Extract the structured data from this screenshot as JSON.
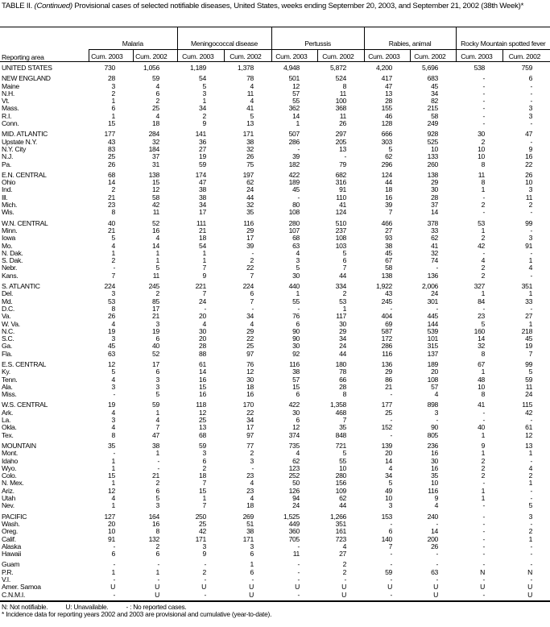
{
  "title": {
    "prefix": "TABLE II. ",
    "continued": "(Continued)",
    "text": " Provisional cases of selected notifiable diseases, United States, weeks ending September 20, 2003, and September 21, 2002 (38th Week)*"
  },
  "header": {
    "area_label": "Reporting area",
    "groups": [
      "Malaria",
      "Meningococcal disease",
      "Pertussis",
      "Rabies, animal",
      "Rocky Mountain spotted fever"
    ],
    "sub": [
      "Cum. 2003",
      "Cum. 2002"
    ]
  },
  "groups": [
    [
      [
        "UNITED STATES",
        "730",
        "1,056",
        "1,189",
        "1,378",
        "4,948",
        "5,872",
        "4,200",
        "5,696",
        "538",
        "759"
      ]
    ],
    [
      [
        "NEW ENGLAND",
        "28",
        "59",
        "54",
        "78",
        "501",
        "524",
        "417",
        "683",
        "-",
        "6"
      ],
      [
        "Maine",
        "3",
        "4",
        "5",
        "4",
        "12",
        "8",
        "47",
        "45",
        "-",
        "-"
      ],
      [
        "N.H.",
        "2",
        "6",
        "3",
        "11",
        "57",
        "11",
        "13",
        "34",
        "-",
        "-"
      ],
      [
        "Vt.",
        "1",
        "2",
        "1",
        "4",
        "55",
        "100",
        "28",
        "82",
        "-",
        "-"
      ],
      [
        "Mass.",
        "6",
        "25",
        "34",
        "41",
        "362",
        "368",
        "155",
        "215",
        "-",
        "3"
      ],
      [
        "R.I.",
        "1",
        "4",
        "2",
        "5",
        "14",
        "11",
        "46",
        "58",
        "-",
        "3"
      ],
      [
        "Conn.",
        "15",
        "18",
        "9",
        "13",
        "1",
        "26",
        "128",
        "249",
        "-",
        "-"
      ]
    ],
    [
      [
        "MID. ATLANTIC",
        "177",
        "284",
        "141",
        "171",
        "507",
        "297",
        "666",
        "928",
        "30",
        "47"
      ],
      [
        "Upstate N.Y.",
        "43",
        "32",
        "36",
        "38",
        "286",
        "205",
        "303",
        "525",
        "2",
        "-"
      ],
      [
        "N.Y. City",
        "83",
        "184",
        "27",
        "32",
        "-",
        "13",
        "5",
        "10",
        "10",
        "9"
      ],
      [
        "N.J.",
        "25",
        "37",
        "19",
        "26",
        "39",
        "-",
        "62",
        "133",
        "10",
        "16"
      ],
      [
        "Pa.",
        "26",
        "31",
        "59",
        "75",
        "182",
        "79",
        "296",
        "260",
        "8",
        "22"
      ]
    ],
    [
      [
        "E.N. CENTRAL",
        "68",
        "138",
        "174",
        "197",
        "422",
        "682",
        "124",
        "138",
        "11",
        "26"
      ],
      [
        "Ohio",
        "14",
        "15",
        "47",
        "62",
        "189",
        "316",
        "44",
        "29",
        "8",
        "10"
      ],
      [
        "Ind.",
        "2",
        "12",
        "38",
        "24",
        "45",
        "91",
        "18",
        "30",
        "1",
        "3"
      ],
      [
        "Ill.",
        "21",
        "58",
        "38",
        "44",
        "-",
        "110",
        "16",
        "28",
        "-",
        "11"
      ],
      [
        "Mich.",
        "23",
        "42",
        "34",
        "32",
        "80",
        "41",
        "39",
        "37",
        "2",
        "2"
      ],
      [
        "Wis.",
        "8",
        "11",
        "17",
        "35",
        "108",
        "124",
        "7",
        "14",
        "-",
        "-"
      ]
    ],
    [
      [
        "W.N. CENTRAL",
        "40",
        "52",
        "111",
        "116",
        "280",
        "510",
        "466",
        "378",
        "53",
        "99"
      ],
      [
        "Minn.",
        "21",
        "16",
        "21",
        "29",
        "107",
        "237",
        "27",
        "33",
        "1",
        "-"
      ],
      [
        "Iowa",
        "5",
        "4",
        "18",
        "17",
        "68",
        "108",
        "93",
        "62",
        "2",
        "3"
      ],
      [
        "Mo.",
        "4",
        "14",
        "54",
        "39",
        "63",
        "103",
        "38",
        "41",
        "42",
        "91"
      ],
      [
        "N. Dak.",
        "1",
        "1",
        "1",
        "-",
        "4",
        "5",
        "45",
        "32",
        "-",
        "-"
      ],
      [
        "S. Dak.",
        "2",
        "1",
        "1",
        "2",
        "3",
        "6",
        "67",
        "74",
        "4",
        "1"
      ],
      [
        "Nebr.",
        "-",
        "5",
        "7",
        "22",
        "5",
        "7",
        "58",
        "-",
        "2",
        "4"
      ],
      [
        "Kans.",
        "7",
        "11",
        "9",
        "7",
        "30",
        "44",
        "138",
        "136",
        "2",
        "-"
      ]
    ],
    [
      [
        "S. ATLANTIC",
        "224",
        "245",
        "221",
        "224",
        "440",
        "334",
        "1,922",
        "2,006",
        "327",
        "351"
      ],
      [
        "Del.",
        "3",
        "2",
        "7",
        "6",
        "1",
        "2",
        "43",
        "24",
        "1",
        "1"
      ],
      [
        "Md.",
        "53",
        "85",
        "24",
        "7",
        "55",
        "53",
        "245",
        "301",
        "84",
        "33"
      ],
      [
        "D.C.",
        "8",
        "17",
        "-",
        "-",
        "-",
        "1",
        "-",
        "-",
        "-",
        "-"
      ],
      [
        "Va.",
        "26",
        "21",
        "20",
        "34",
        "76",
        "117",
        "404",
        "445",
        "23",
        "27"
      ],
      [
        "W. Va.",
        "4",
        "3",
        "4",
        "4",
        "6",
        "30",
        "69",
        "144",
        "5",
        "1"
      ],
      [
        "N.C.",
        "19",
        "19",
        "30",
        "29",
        "90",
        "29",
        "587",
        "539",
        "160",
        "218"
      ],
      [
        "S.C.",
        "3",
        "6",
        "20",
        "22",
        "90",
        "34",
        "172",
        "101",
        "14",
        "45"
      ],
      [
        "Ga.",
        "45",
        "40",
        "28",
        "25",
        "30",
        "24",
        "286",
        "315",
        "32",
        "19"
      ],
      [
        "Fla.",
        "63",
        "52",
        "88",
        "97",
        "92",
        "44",
        "116",
        "137",
        "8",
        "7"
      ]
    ],
    [
      [
        "E.S. CENTRAL",
        "12",
        "17",
        "61",
        "76",
        "116",
        "180",
        "136",
        "189",
        "67",
        "99"
      ],
      [
        "Ky.",
        "5",
        "6",
        "14",
        "12",
        "38",
        "78",
        "29",
        "20",
        "1",
        "5"
      ],
      [
        "Tenn.",
        "4",
        "3",
        "16",
        "30",
        "57",
        "66",
        "86",
        "108",
        "48",
        "59"
      ],
      [
        "Ala.",
        "3",
        "3",
        "15",
        "18",
        "15",
        "28",
        "21",
        "57",
        "10",
        "11"
      ],
      [
        "Miss.",
        "-",
        "5",
        "16",
        "16",
        "6",
        "8",
        "-",
        "4",
        "8",
        "24"
      ]
    ],
    [
      [
        "W.S. CENTRAL",
        "19",
        "59",
        "118",
        "170",
        "422",
        "1,358",
        "177",
        "898",
        "41",
        "115"
      ],
      [
        "Ark.",
        "4",
        "1",
        "12",
        "22",
        "30",
        "468",
        "25",
        "3",
        "-",
        "42"
      ],
      [
        "La.",
        "3",
        "4",
        "25",
        "34",
        "6",
        "7",
        "-",
        "-",
        "-",
        "-"
      ],
      [
        "Okla.",
        "4",
        "7",
        "13",
        "17",
        "12",
        "35",
        "152",
        "90",
        "40",
        "61"
      ],
      [
        "Tex.",
        "8",
        "47",
        "68",
        "97",
        "374",
        "848",
        "-",
        "805",
        "1",
        "12"
      ]
    ],
    [
      [
        "MOUNTAIN",
        "35",
        "38",
        "59",
        "77",
        "735",
        "721",
        "139",
        "236",
        "9",
        "13"
      ],
      [
        "Mont.",
        "-",
        "1",
        "3",
        "2",
        "4",
        "5",
        "20",
        "16",
        "1",
        "1"
      ],
      [
        "Idaho",
        "1",
        "-",
        "6",
        "3",
        "62",
        "55",
        "14",
        "30",
        "2",
        "-"
      ],
      [
        "Wyo.",
        "1",
        "-",
        "2",
        "-",
        "123",
        "10",
        "4",
        "16",
        "2",
        "4"
      ],
      [
        "Colo.",
        "15",
        "21",
        "18",
        "23",
        "252",
        "280",
        "34",
        "35",
        "2",
        "2"
      ],
      [
        "N. Mex.",
        "1",
        "2",
        "7",
        "4",
        "50",
        "156",
        "5",
        "10",
        "-",
        "1"
      ],
      [
        "Ariz.",
        "12",
        "6",
        "15",
        "23",
        "126",
        "109",
        "49",
        "116",
        "1",
        "-"
      ],
      [
        "Utah",
        "4",
        "5",
        "1",
        "4",
        "94",
        "62",
        "10",
        "9",
        "1",
        "-"
      ],
      [
        "Nev.",
        "1",
        "3",
        "7",
        "18",
        "24",
        "44",
        "3",
        "4",
        "-",
        "5"
      ]
    ],
    [
      [
        "PACIFIC",
        "127",
        "164",
        "250",
        "269",
        "1,525",
        "1,266",
        "153",
        "240",
        "-",
        "3"
      ],
      [
        "Wash.",
        "20",
        "16",
        "25",
        "51",
        "449",
        "351",
        "-",
        "-",
        "-",
        "-"
      ],
      [
        "Oreg.",
        "10",
        "8",
        "42",
        "38",
        "360",
        "161",
        "6",
        "14",
        "-",
        "2"
      ],
      [
        "Calif.",
        "91",
        "132",
        "171",
        "171",
        "705",
        "723",
        "140",
        "200",
        "-",
        "1"
      ],
      [
        "Alaska",
        "-",
        "2",
        "3",
        "3",
        "-",
        "4",
        "7",
        "26",
        "-",
        "-"
      ],
      [
        "Hawaii",
        "6",
        "6",
        "9",
        "6",
        "11",
        "27",
        "-",
        "-",
        "-",
        "-"
      ]
    ],
    [
      [
        "Guam",
        "-",
        "-",
        "-",
        "1",
        "-",
        "2",
        "-",
        "-",
        "-",
        "-"
      ],
      [
        "P.R.",
        "1",
        "1",
        "2",
        "6",
        "-",
        "2",
        "59",
        "63",
        "N",
        "N"
      ],
      [
        "V.I.",
        "-",
        "-",
        "-",
        "-",
        "-",
        "-",
        "-",
        "-",
        "-",
        "-"
      ],
      [
        "Amer. Samoa",
        "U",
        "U",
        "U",
        "U",
        "U",
        "U",
        "U",
        "U",
        "U",
        "U"
      ],
      [
        "C.N.M.I.",
        "-",
        "U",
        "-",
        "U",
        "-",
        "U",
        "-",
        "U",
        "-",
        "U"
      ]
    ]
  ],
  "footnotes": {
    "n": "N: Not notifiable.",
    "u": "U: Unavailable.",
    "dash": "- : No reported cases.",
    "star": "* Incidence data for reporting years 2002 and 2003 are provisional and cumulative (year-to-date)."
  }
}
